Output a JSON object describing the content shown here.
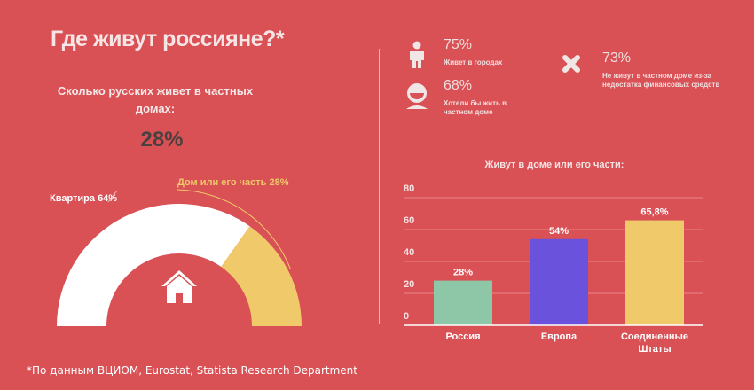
{
  "title": "Где живут россияне?*",
  "question": "Сколько русских живет в частных домах:",
  "big_value": "28%",
  "footnote": "*По данным ВЦИОМ, Eurostat, Statista Research Department",
  "colors": {
    "background": "#d95055",
    "apartment": "#ffffff",
    "house": "#efc96a",
    "russia": "#8ec6a8",
    "europe": "#6a52dc",
    "usa": "#efc96a"
  },
  "stats": [
    {
      "icon": "person-icon",
      "value": "75%",
      "text": "Живет в городах"
    },
    {
      "icon": "smiling-face-icon",
      "value": "68%",
      "text": "Хотели бы жить в частном доме"
    },
    {
      "icon": "cross-icon",
      "value": "73%",
      "text": "Не живут в частном доме из-за недостатка финансовых средств"
    }
  ],
  "chart_data": [
    {
      "type": "pie",
      "style": "half-donut",
      "center_icon": "house-icon",
      "slices": [
        {
          "label": "Квартира 64%",
          "value": 64
        },
        {
          "label": "Дом или его часть 28%",
          "value": 28
        }
      ]
    },
    {
      "type": "bar",
      "title": "Живут в доме или его части:",
      "categories": [
        "Россия",
        "Европа",
        "Соединенные Штаты"
      ],
      "values": [
        28,
        54,
        65.8
      ],
      "data_labels": [
        "28%",
        "54%",
        "65,8%"
      ],
      "ylim": [
        0,
        80
      ],
      "yticks": [
        0,
        20,
        40,
        60,
        80
      ],
      "grid": true
    }
  ]
}
